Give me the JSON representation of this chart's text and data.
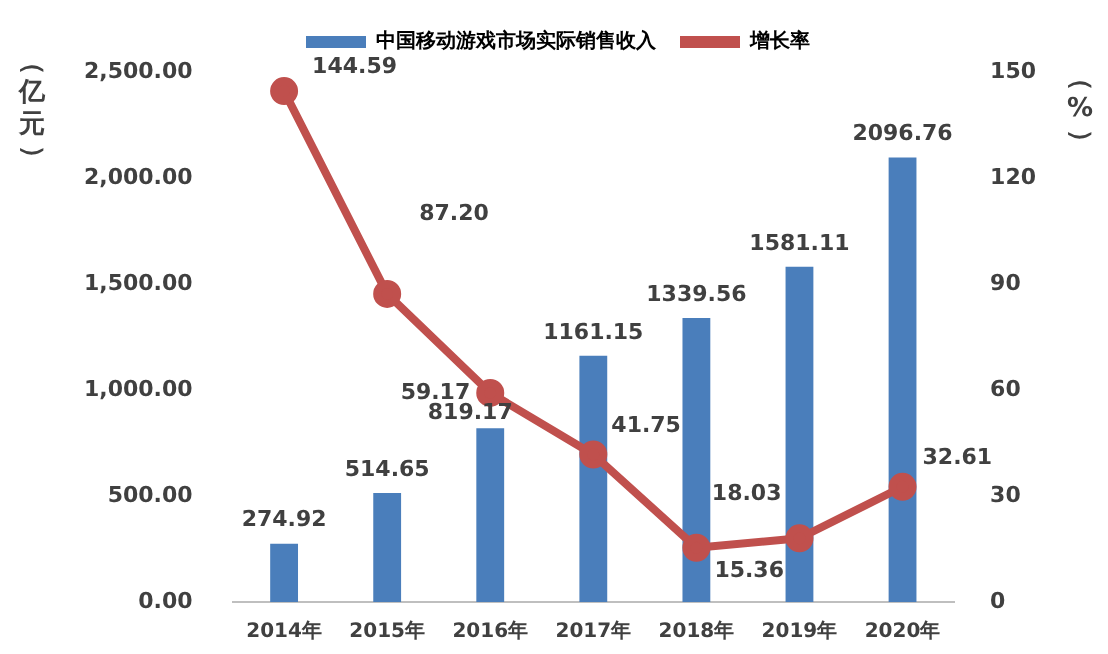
{
  "chart_data": {
    "type": "bar",
    "categories": [
      "2014年",
      "2015年",
      "2016年",
      "2017年",
      "2018年",
      "2019年",
      "2020年"
    ],
    "ylabel": "（亿元）",
    "y2label": "（%）",
    "series": [
      {
        "name": "中国移动游戏市场实际销售收入",
        "type": "bar",
        "color": "#4a7ebb",
        "values": [
          274.92,
          514.65,
          819.17,
          1161.15,
          1339.56,
          1581.11,
          2096.76
        ],
        "value_labels": [
          "274.92",
          "514.65",
          "819.17",
          "1161.15",
          "1339.56",
          "1581.11",
          "2096.76"
        ]
      },
      {
        "name": "增长率",
        "type": "line",
        "axis": "y2",
        "color": "#c0504d",
        "marker": "circle",
        "values": [
          144.59,
          87.2,
          59.17,
          41.75,
          15.36,
          18.03,
          32.61
        ],
        "value_labels": [
          "144.59",
          "87.20",
          "59.17",
          "41.75",
          "15.36",
          "18.03",
          "32.61"
        ]
      }
    ],
    "ylim": [
      0,
      2500
    ],
    "yticks": [
      {
        "value": 0,
        "label": "0.00"
      },
      {
        "value": 500,
        "label": "500.00"
      },
      {
        "value": 1000,
        "label": "1,000.00"
      },
      {
        "value": 1500,
        "label": "1,500.00"
      },
      {
        "value": 2000,
        "label": "2,000.00"
      },
      {
        "value": 2500,
        "label": "2,500.00"
      }
    ],
    "y2lim": [
      0,
      150
    ],
    "y2ticks": [
      0,
      30,
      60,
      90,
      120,
      150
    ],
    "grid": false,
    "legend": "top"
  }
}
